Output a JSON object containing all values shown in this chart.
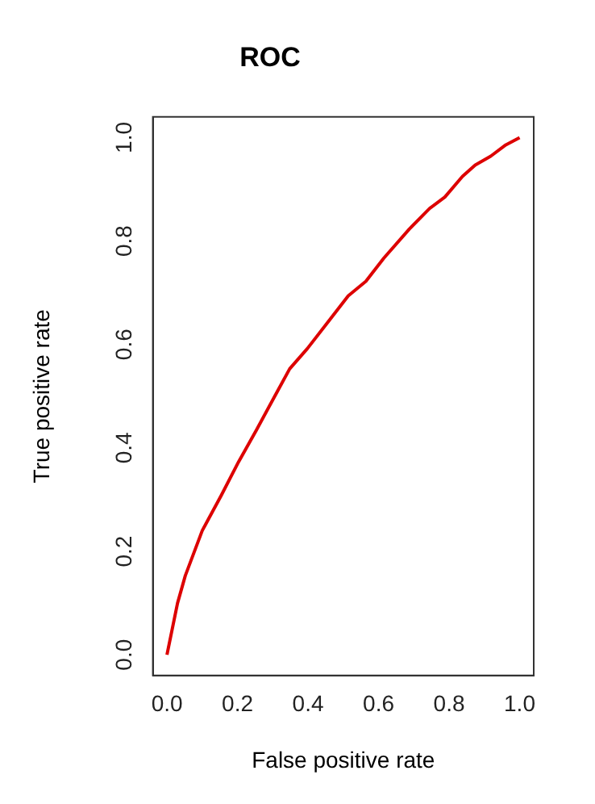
{
  "chart_data": {
    "type": "line",
    "title": "ROC",
    "xlabel": "False positive rate",
    "ylabel": "True positive rate",
    "x": [
      0,
      0.03,
      0.052,
      0.1,
      0.153,
      0.203,
      0.254,
      0.312,
      0.348,
      0.398,
      0.456,
      0.514,
      0.564,
      0.615,
      0.687,
      0.745,
      0.788,
      0.838,
      0.874,
      0.918,
      0.961,
      1
    ],
    "series": [
      {
        "color": "#dd0000",
        "values": [
          0,
          0.1,
          0.153,
          0.24,
          0.307,
          0.373,
          0.435,
          0.508,
          0.553,
          0.592,
          0.643,
          0.694,
          0.722,
          0.767,
          0.823,
          0.863,
          0.885,
          0.925,
          0.947,
          0.964,
          0.986,
          1
        ]
      }
    ],
    "xlim": [
      -0.04,
      1.04
    ],
    "ylim": [
      -0.04,
      1.04
    ],
    "xticks": [
      {
        "value": 0,
        "label": "0.0"
      },
      0.2,
      0.4,
      0.6,
      0.8,
      {
        "value": 1,
        "label": "1.0"
      }
    ],
    "yticks": [
      {
        "value": 0,
        "label": "0.0"
      },
      0.2,
      0.4,
      0.6,
      0.8,
      {
        "value": 1,
        "label": "1.0"
      }
    ],
    "grid": false,
    "legend": false,
    "marker": "none",
    "line_style": "solid"
  }
}
